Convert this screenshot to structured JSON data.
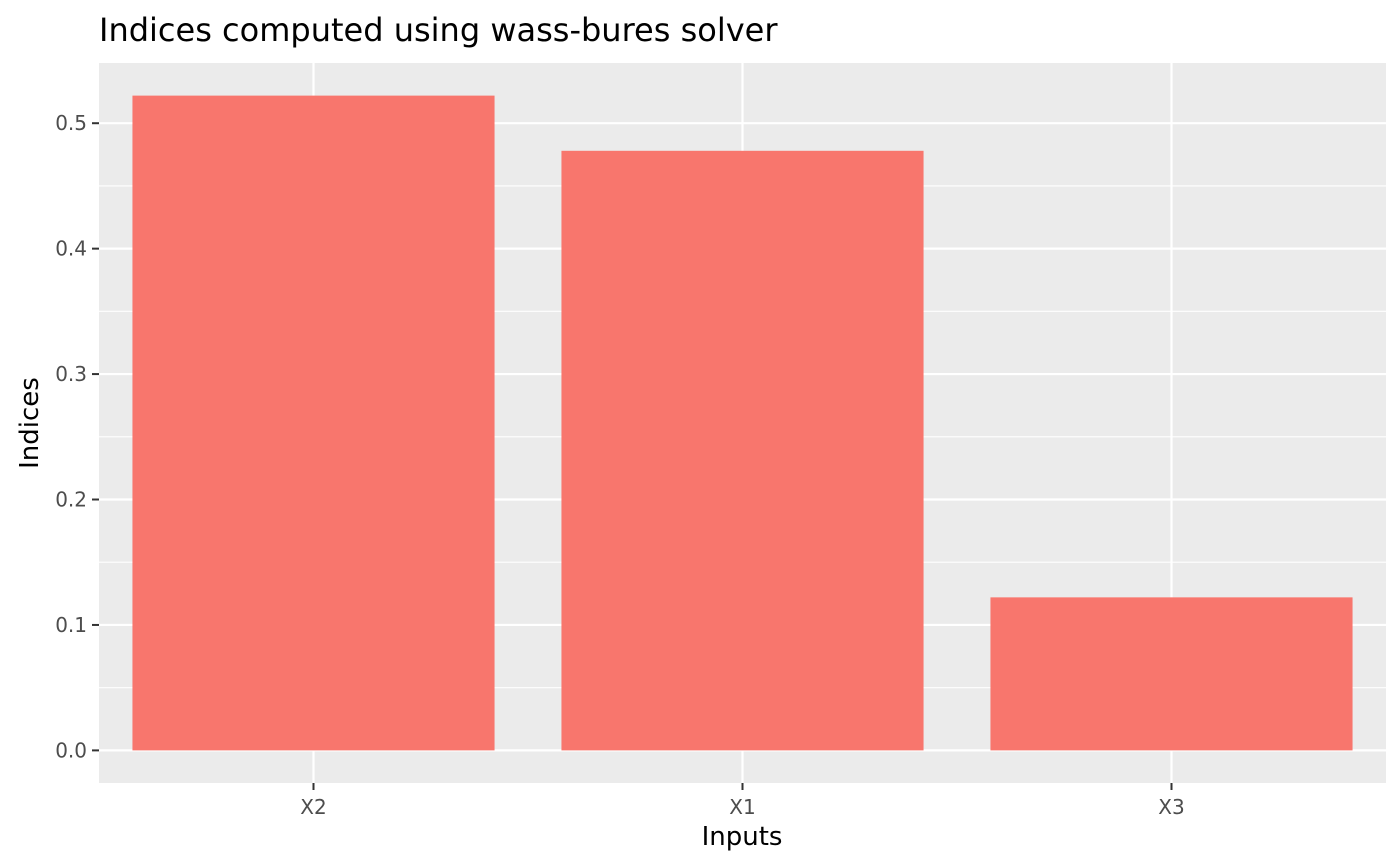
{
  "chart_data": {
    "type": "bar",
    "title": "Indices computed using wass-bures solver",
    "xlabel": "Inputs",
    "ylabel": "Indices",
    "categories": [
      "X2",
      "X1",
      "X3"
    ],
    "values": [
      0.522,
      0.478,
      0.122
    ],
    "ylim": [
      -0.026,
      0.548
    ],
    "yticks": [
      0.0,
      0.1,
      0.2,
      0.3,
      0.4,
      0.5
    ],
    "ytick_labels": [
      "0.0",
      "0.1",
      "0.2",
      "0.3",
      "0.4",
      "0.5"
    ],
    "grid": true,
    "legend": "none",
    "colors": {
      "bar": "#F8766D",
      "panel": "#EBEBEB",
      "grid": "#FFFFFF",
      "tick_text": "#4D4D4D",
      "tick_mark": "#333333"
    }
  }
}
